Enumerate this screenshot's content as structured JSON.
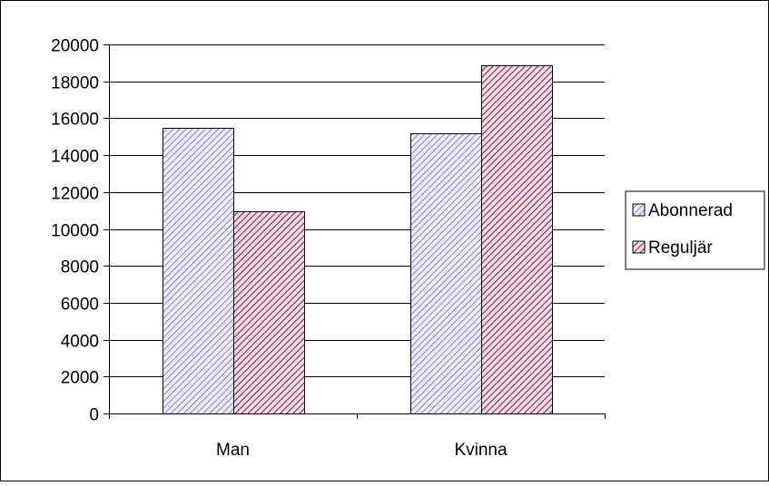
{
  "chart_data": {
    "type": "bar",
    "categories": [
      "Man",
      "Kvinna"
    ],
    "series": [
      {
        "name": "Abonnerad",
        "values": [
          15500,
          15200
        ],
        "color": "#d8d8f8",
        "pattern": "diagonal-hatch-blue"
      },
      {
        "name": "Reguljär",
        "values": [
          10950,
          18850
        ],
        "color": "#e0a0b8",
        "pattern": "diagonal-hatch-maroon"
      }
    ],
    "ylim": [
      0,
      20000
    ],
    "yticks": [
      0,
      2000,
      4000,
      6000,
      8000,
      10000,
      12000,
      14000,
      16000,
      18000,
      20000
    ],
    "grid": true,
    "legend_position": "right",
    "title": "",
    "xlabel": "",
    "ylabel": ""
  }
}
